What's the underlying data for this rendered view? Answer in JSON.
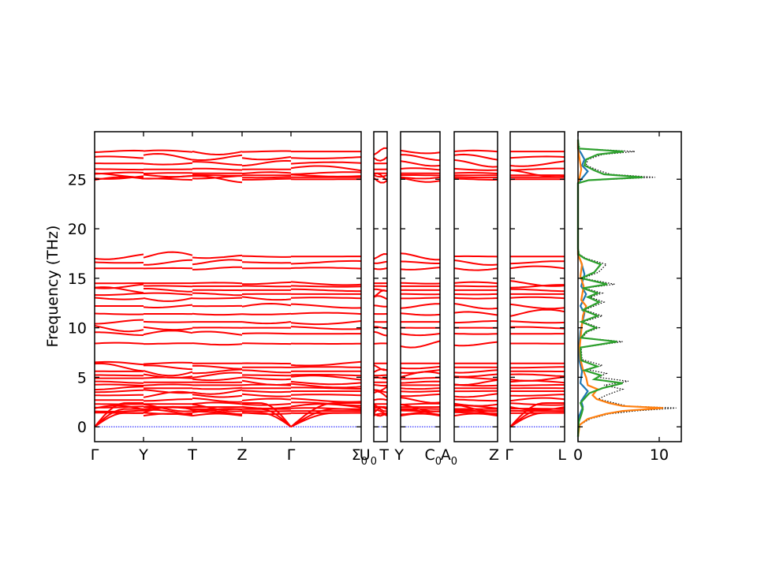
{
  "chart_data": {
    "type": "line",
    "ylabel": "Frequency (THz)",
    "ylim": [
      -1.5,
      29.8
    ],
    "yticks": [
      0,
      5,
      10,
      15,
      20,
      25
    ],
    "colors": {
      "bands": "#ff0000",
      "zero_line": "#0000ff",
      "total_dos": "#000000",
      "pdos": [
        "#1f77b4",
        "#ff7f0e",
        "#2ca02c"
      ]
    },
    "panels": [
      {
        "labels": [
          "Γ",
          "Y",
          "T",
          "Z",
          "Γ",
          "Σ0"
        ],
        "segments": 5,
        "show_ylabel": true
      },
      {
        "labels": [
          "U0",
          "T"
        ],
        "segments": 1
      },
      {
        "labels": [
          "Y",
          "C0"
        ],
        "segments": 1
      },
      {
        "labels": [
          "A0",
          "Z"
        ],
        "segments": 1
      },
      {
        "labels": [
          "Γ",
          "L"
        ],
        "segments": 1
      }
    ],
    "band_groups": {
      "high": [
        25.0,
        25.2,
        25.4,
        25.6,
        26.0,
        26.6,
        27.2,
        27.8
      ],
      "mid": [
        8.4,
        9.4,
        10.0,
        10.6,
        11.4,
        12.2,
        13.0,
        13.4,
        13.8,
        14.2,
        14.5,
        16.0,
        16.6,
        17.2
      ],
      "low_optical": [
        1.4,
        1.6,
        1.8,
        2.0,
        2.3,
        2.7,
        3.2,
        3.6,
        3.9,
        4.2,
        4.5,
        4.9,
        5.2,
        5.6,
        6.0,
        6.4
      ],
      "acoustic_max": [
        1.4,
        1.8,
        2.4
      ]
    },
    "dos": {
      "xlim": [
        0,
        12
      ],
      "xticks": [
        0,
        10
      ],
      "series": [
        {
          "color": "#000000",
          "style": "dotted",
          "points": [
            [
              0,
              -1
            ],
            [
              0.2,
              0.2
            ],
            [
              1.5,
              0.8
            ],
            [
              3.8,
              1.3
            ],
            [
              7,
              1.6
            ],
            [
              12.1,
              1.9
            ],
            [
              6,
              2.1
            ],
            [
              4.5,
              2.4
            ],
            [
              2.5,
              2.8
            ],
            [
              3.5,
              3.2
            ],
            [
              5.5,
              3.8
            ],
            [
              3.2,
              4.2
            ],
            [
              6.2,
              4.6
            ],
            [
              2.5,
              5.0
            ],
            [
              3.5,
              5.4
            ],
            [
              1.0,
              5.8
            ],
            [
              3.0,
              6.2
            ],
            [
              0.5,
              6.8
            ],
            [
              0.4,
              8.0
            ],
            [
              5.5,
              8.6
            ],
            [
              0.5,
              9.0
            ],
            [
              1.2,
              9.6
            ],
            [
              2.6,
              10.0
            ],
            [
              0.6,
              10.6
            ],
            [
              3.0,
              11.2
            ],
            [
              0.8,
              11.8
            ],
            [
              3.2,
              12.6
            ],
            [
              1.5,
              13.1
            ],
            [
              3.0,
              13.5
            ],
            [
              0.8,
              14.0
            ],
            [
              4.5,
              14.4
            ],
            [
              0.6,
              15.0
            ],
            [
              2.5,
              15.6
            ],
            [
              3.5,
              16.4
            ],
            [
              1.0,
              17.0
            ],
            [
              0.2,
              17.4
            ],
            [
              0,
              18
            ],
            [
              0,
              24.6
            ],
            [
              1.5,
              24.9
            ],
            [
              9.5,
              25.2
            ],
            [
              4.0,
              25.5
            ],
            [
              2.5,
              25.9
            ],
            [
              1.0,
              26.4
            ],
            [
              1.2,
              27.0
            ],
            [
              3.0,
              27.5
            ],
            [
              7.0,
              27.8
            ],
            [
              0.2,
              28.1
            ],
            [
              0,
              29
            ]
          ]
        },
        {
          "color": "#1f77b4",
          "style": "solid",
          "points": [
            [
              0,
              -1
            ],
            [
              0.1,
              1.0
            ],
            [
              0.6,
              2.0
            ],
            [
              0.4,
              2.6
            ],
            [
              1.2,
              3.6
            ],
            [
              0.3,
              4.4
            ],
            [
              0.5,
              5.6
            ],
            [
              0.2,
              6.6
            ],
            [
              0.1,
              8
            ],
            [
              0.3,
              9.6
            ],
            [
              0.8,
              11.5
            ],
            [
              0.3,
              12.2
            ],
            [
              1.0,
              13.4
            ],
            [
              0.4,
              14.2
            ],
            [
              0.8,
              15.4
            ],
            [
              0.4,
              16.6
            ],
            [
              0,
              17.4
            ],
            [
              0,
              24.6
            ],
            [
              0.6,
              25.2
            ],
            [
              1.2,
              25.8
            ],
            [
              0.5,
              26.4
            ],
            [
              0.8,
              27.0
            ],
            [
              0.4,
              27.6
            ],
            [
              0,
              28.1
            ],
            [
              0,
              29
            ]
          ]
        },
        {
          "color": "#ff7f0e",
          "style": "solid",
          "points": [
            [
              0,
              -1
            ],
            [
              0.2,
              0.2
            ],
            [
              1.2,
              0.8
            ],
            [
              3.4,
              1.3
            ],
            [
              5.5,
              1.6
            ],
            [
              10.5,
              1.9
            ],
            [
              5.5,
              2.1
            ],
            [
              3.8,
              2.4
            ],
            [
              2.3,
              2.8
            ],
            [
              1.8,
              3.2
            ],
            [
              2.4,
              3.8
            ],
            [
              1.2,
              4.2
            ],
            [
              1.0,
              5.0
            ],
            [
              0.6,
              5.8
            ],
            [
              0.3,
              6.8
            ],
            [
              0.2,
              8
            ],
            [
              0.4,
              9.6
            ],
            [
              0.6,
              11.2
            ],
            [
              1.0,
              12.2
            ],
            [
              0.4,
              12.8
            ],
            [
              0.7,
              14.2
            ],
            [
              0.3,
              15.2
            ],
            [
              0.5,
              16.4
            ],
            [
              0,
              17.4
            ],
            [
              0,
              24.6
            ],
            [
              0.2,
              25.2
            ],
            [
              0.4,
              26.0
            ],
            [
              0.2,
              27.0
            ],
            [
              0,
              28.1
            ],
            [
              0,
              29
            ]
          ]
        },
        {
          "color": "#2ca02c",
          "style": "solid",
          "points": [
            [
              0,
              -1
            ],
            [
              0.1,
              0.5
            ],
            [
              0.4,
              1.2
            ],
            [
              0.6,
              1.8
            ],
            [
              0.3,
              2.4
            ],
            [
              1.4,
              3.4
            ],
            [
              3.0,
              3.9
            ],
            [
              5.5,
              4.4
            ],
            [
              2.0,
              4.8
            ],
            [
              2.8,
              5.2
            ],
            [
              0.8,
              5.7
            ],
            [
              2.4,
              6.1
            ],
            [
              0.4,
              6.7
            ],
            [
              0.3,
              8.0
            ],
            [
              4.8,
              8.6
            ],
            [
              0.4,
              9.0
            ],
            [
              1.0,
              9.6
            ],
            [
              2.2,
              10.0
            ],
            [
              0.4,
              10.6
            ],
            [
              2.4,
              11.2
            ],
            [
              0.6,
              11.8
            ],
            [
              2.6,
              12.6
            ],
            [
              1.2,
              13.1
            ],
            [
              2.4,
              13.5
            ],
            [
              0.6,
              14.0
            ],
            [
              3.6,
              14.4
            ],
            [
              0.4,
              15.0
            ],
            [
              2.0,
              15.6
            ],
            [
              2.8,
              16.4
            ],
            [
              0.8,
              17.0
            ],
            [
              0.1,
              17.4
            ],
            [
              0,
              18
            ],
            [
              0,
              24.6
            ],
            [
              1.3,
              24.9
            ],
            [
              8.0,
              25.2
            ],
            [
              3.2,
              25.5
            ],
            [
              2.0,
              25.9
            ],
            [
              0.8,
              26.4
            ],
            [
              1.0,
              27.0
            ],
            [
              2.4,
              27.5
            ],
            [
              5.6,
              27.8
            ],
            [
              0.1,
              28.1
            ],
            [
              0,
              29
            ]
          ]
        }
      ]
    }
  }
}
